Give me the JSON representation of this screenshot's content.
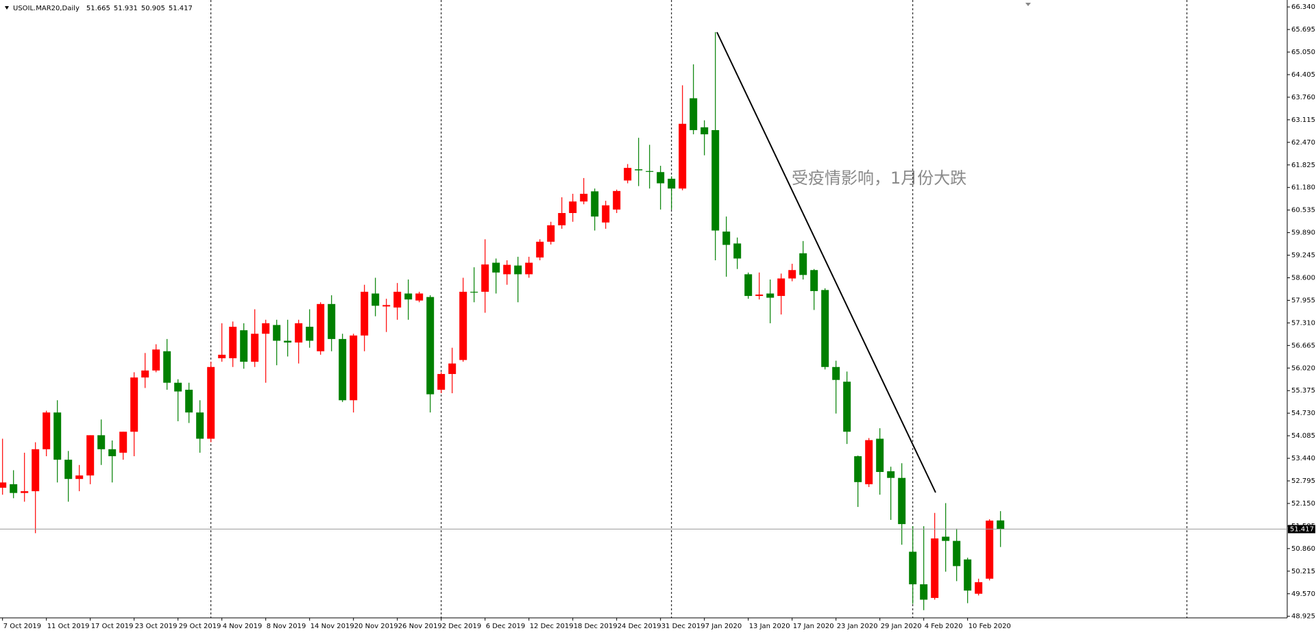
{
  "header": {
    "symbol": "USOIL.MAR20,Daily",
    "annotation": "受疫情影响，1月份大跌"
  },
  "chart_data": {
    "type": "candlestick",
    "categories": [
      "7 Oct 2019",
      null,
      null,
      null,
      "11 Oct 2019",
      null,
      null,
      null,
      "17 Oct 2019",
      null,
      null,
      null,
      "23 Oct 2019",
      null,
      null,
      null,
      "29 Oct 2019",
      null,
      null,
      null,
      "4 Nov 2019",
      null,
      null,
      null,
      "8 Nov 2019",
      null,
      null,
      null,
      "14 Nov 2019",
      null,
      null,
      null,
      "20 Nov 2019",
      null,
      null,
      null,
      "26 Nov 2019",
      null,
      null,
      null,
      "2 Dec 2019",
      null,
      null,
      null,
      "6 Dec 2019",
      null,
      null,
      null,
      "12 Dec 2019",
      null,
      null,
      null,
      "18 Dec 2019",
      null,
      null,
      null,
      "24 Dec 2019",
      null,
      null,
      null,
      "31 Dec 2019",
      null,
      null,
      null,
      "7 Jan 2020",
      null,
      null,
      null,
      "13 Jan 2020",
      null,
      null,
      null,
      "17 Jan 2020",
      null,
      null,
      null,
      "23 Jan 2020",
      null,
      null,
      null,
      "29 Jan 2020",
      null,
      null,
      null,
      "4 Feb 2020",
      null,
      null,
      null,
      "10 Feb 2020",
      null,
      null,
      null
    ],
    "open": [
      52.6,
      52.7,
      52.45,
      52.5,
      53.7,
      54.75,
      53.4,
      52.85,
      52.95,
      54.1,
      53.7,
      53.6,
      54.2,
      55.75,
      55.95,
      56.5,
      55.6,
      55.4,
      54.75,
      54.0,
      56.3,
      56.3,
      57.1,
      56.2,
      57.0,
      57.25,
      56.8,
      56.75,
      57.2,
      56.5,
      57.85,
      56.85,
      55.1,
      56.95,
      58.15,
      57.78,
      57.75,
      58.15,
      57.95,
      58.05,
      55.4,
      55.85,
      56.25,
      58.2,
      58.2,
      59.03,
      58.7,
      58.95,
      58.7,
      59.18,
      59.63,
      60.1,
      60.45,
      60.78,
      61.07,
      60.18,
      60.55,
      61.38,
      61.7,
      61.65,
      61.62,
      61.43,
      61.15,
      63.73,
      62.9,
      62.82,
      59.92,
      59.58,
      58.7,
      58.08,
      58.15,
      58.08,
      58.58,
      59.3,
      58.82,
      58.25,
      56.05,
      55.63,
      53.5,
      52.7,
      54.0,
      53.07,
      52.88,
      50.77,
      49.84,
      49.45,
      51.2,
      51.08,
      50.55,
      49.57,
      50.0,
      51.665
    ],
    "high": [
      54.0,
      53.1,
      53.6,
      53.9,
      54.8,
      55.1,
      53.65,
      53.25,
      54.1,
      54.55,
      53.95,
      54.2,
      55.9,
      56.45,
      56.7,
      56.85,
      55.7,
      55.6,
      55.1,
      56.2,
      57.3,
      57.35,
      57.3,
      57.7,
      57.4,
      57.4,
      57.4,
      57.4,
      57.7,
      57.9,
      58.1,
      57.0,
      57.0,
      58.4,
      58.6,
      58.0,
      58.45,
      58.55,
      58.2,
      58.1,
      55.9,
      56.6,
      58.6,
      58.9,
      59.7,
      59.15,
      59.1,
      59.2,
      59.2,
      59.7,
      60.2,
      60.9,
      61.0,
      61.45,
      61.15,
      60.8,
      61.12,
      61.85,
      62.6,
      62.4,
      61.8,
      61.5,
      64.1,
      64.7,
      63.1,
      65.62,
      60.35,
      59.75,
      58.75,
      58.75,
      58.55,
      58.72,
      59.0,
      59.65,
      58.85,
      58.3,
      56.23,
      55.92,
      53.52,
      54.02,
      54.3,
      53.2,
      53.3,
      51.5,
      51.5,
      51.88,
      52.16,
      51.43,
      50.6,
      50.0,
      51.7,
      51.931
    ],
    "low": [
      52.4,
      52.3,
      52.2,
      51.3,
      53.5,
      52.75,
      52.2,
      52.5,
      52.7,
      53.25,
      52.75,
      53.4,
      53.5,
      55.45,
      55.9,
      55.4,
      54.5,
      54.45,
      53.6,
      53.9,
      56.2,
      56.05,
      56.0,
      56.05,
      55.6,
      56.1,
      56.35,
      56.15,
      56.6,
      56.4,
      56.5,
      55.05,
      54.75,
      56.5,
      57.5,
      57.05,
      57.4,
      57.4,
      57.9,
      54.75,
      55.3,
      55.3,
      56.2,
      57.9,
      57.6,
      58.15,
      58.4,
      57.9,
      58.6,
      59.1,
      59.55,
      60.0,
      60.2,
      60.7,
      59.95,
      60.0,
      60.45,
      61.3,
      61.22,
      61.15,
      60.55,
      60.55,
      61.1,
      62.7,
      62.1,
      59.1,
      58.63,
      58.85,
      58.0,
      57.98,
      57.3,
      57.55,
      58.5,
      58.55,
      57.68,
      55.98,
      54.72,
      53.85,
      52.05,
      52.62,
      52.4,
      51.68,
      50.97,
      49.28,
      49.1,
      49.4,
      50.2,
      49.93,
      49.3,
      49.52,
      49.95,
      50.905
    ],
    "close": [
      52.75,
      52.45,
      52.5,
      53.7,
      54.75,
      53.4,
      52.85,
      52.95,
      54.1,
      53.7,
      53.5,
      54.2,
      55.75,
      55.95,
      56.55,
      55.6,
      55.35,
      54.75,
      54.0,
      56.05,
      56.4,
      57.2,
      56.2,
      57.0,
      57.3,
      56.8,
      56.75,
      57.3,
      56.8,
      57.85,
      56.85,
      55.1,
      56.95,
      58.2,
      57.8,
      57.82,
      58.2,
      57.98,
      58.15,
      55.27,
      55.85,
      56.15,
      58.2,
      58.18,
      58.98,
      58.75,
      58.97,
      58.7,
      59.03,
      59.63,
      60.1,
      60.45,
      60.78,
      61.0,
      60.35,
      60.67,
      61.08,
      61.74,
      61.67,
      61.63,
      61.3,
      61.15,
      63.0,
      62.82,
      62.7,
      59.95,
      59.54,
      59.15,
      58.08,
      58.12,
      58.03,
      58.58,
      58.82,
      58.68,
      58.22,
      56.05,
      55.68,
      54.2,
      52.76,
      53.96,
      53.05,
      52.88,
      51.56,
      49.84,
      49.4,
      51.15,
      51.08,
      50.36,
      49.66,
      49.9,
      51.66,
      51.417
    ],
    "up_color": "#ff0000",
    "down_color": "#008000",
    "ylim": [
      48.88,
      66.46
    ],
    "yticks": [
      {
        "value": 66.34,
        "label": "66.340"
      },
      65.695,
      {
        "value": 65.05,
        "label": "65.050"
      },
      64.405,
      {
        "value": 63.76,
        "label": "63.760"
      },
      63.115,
      {
        "value": 62.47,
        "label": "62.470"
      },
      61.825,
      {
        "value": 61.18,
        "label": "61.180"
      },
      60.535,
      {
        "value": 59.89,
        "label": "59.890"
      },
      59.245,
      {
        "value": 58.6,
        "label": "58.600"
      },
      57.955,
      {
        "value": 57.31,
        "label": "57.310"
      },
      56.665,
      {
        "value": 56.02,
        "label": "56.020"
      },
      55.375,
      {
        "value": 54.73,
        "label": "54.730"
      },
      54.085,
      {
        "value": 53.44,
        "label": "53.440"
      },
      52.795,
      {
        "value": 52.15,
        "label": "52.150"
      },
      51.505,
      {
        "value": 50.86,
        "label": "50.860"
      },
      50.215,
      {
        "value": 49.57,
        "label": "49.570"
      },
      48.925
    ],
    "grid": false
  }
}
